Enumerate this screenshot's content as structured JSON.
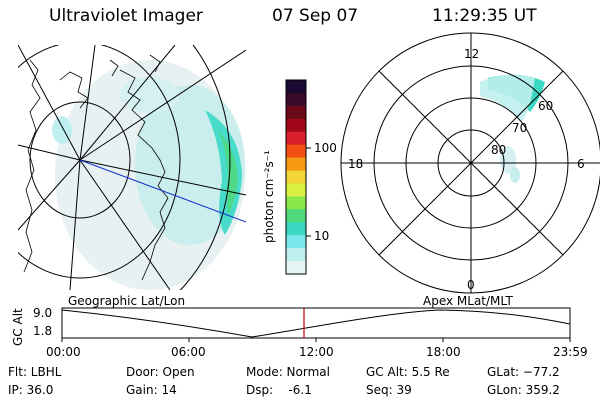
{
  "header": {
    "instrument": "Ultraviolet Imager",
    "date": "07 Sep 07",
    "time": "11:29:35 UT"
  },
  "colorbar": {
    "unit_label": "photon cm⁻²s⁻¹",
    "ticks": [
      "100",
      "10"
    ],
    "colors": [
      "#1a0a33",
      "#3a0a2a",
      "#6a0a18",
      "#a0081a",
      "#d8202a",
      "#f05010",
      "#f59a12",
      "#f5d43a",
      "#d8f040",
      "#8ae84a",
      "#4fd87c",
      "#3bd8c4",
      "#7ae8ea",
      "#bfeff0",
      "#e6f4f4"
    ]
  },
  "left_panel": {
    "caption": "Geographic Lat/Lon"
  },
  "right_panel": {
    "caption": "Apex MLat/MLT",
    "clock_labels": {
      "top": "12",
      "bottom": "0",
      "left": "18",
      "right": "6"
    },
    "lat_labels": [
      "60",
      "70",
      "80"
    ]
  },
  "orbit": {
    "y_label": "GC Alt",
    "y_ticks": [
      "9.0",
      "1.8"
    ],
    "x_ticks": [
      "00:00",
      "06:00",
      "12:00",
      "18:00",
      "23:59"
    ],
    "marker_color": "#c00000"
  },
  "info": {
    "flt": "Flt: LBHL",
    "ip": "IP: 36.0",
    "door": "Door: Open",
    "gain": "Gain: 14",
    "mode": "Mode: Normal",
    "dsp": "Dsp:    -6.1",
    "gcalt": "GC Alt: 5.5 Re",
    "seq": "Seq: 39",
    "glat": "GLat: −77.2",
    "glon": "GLon: 359.2"
  }
}
